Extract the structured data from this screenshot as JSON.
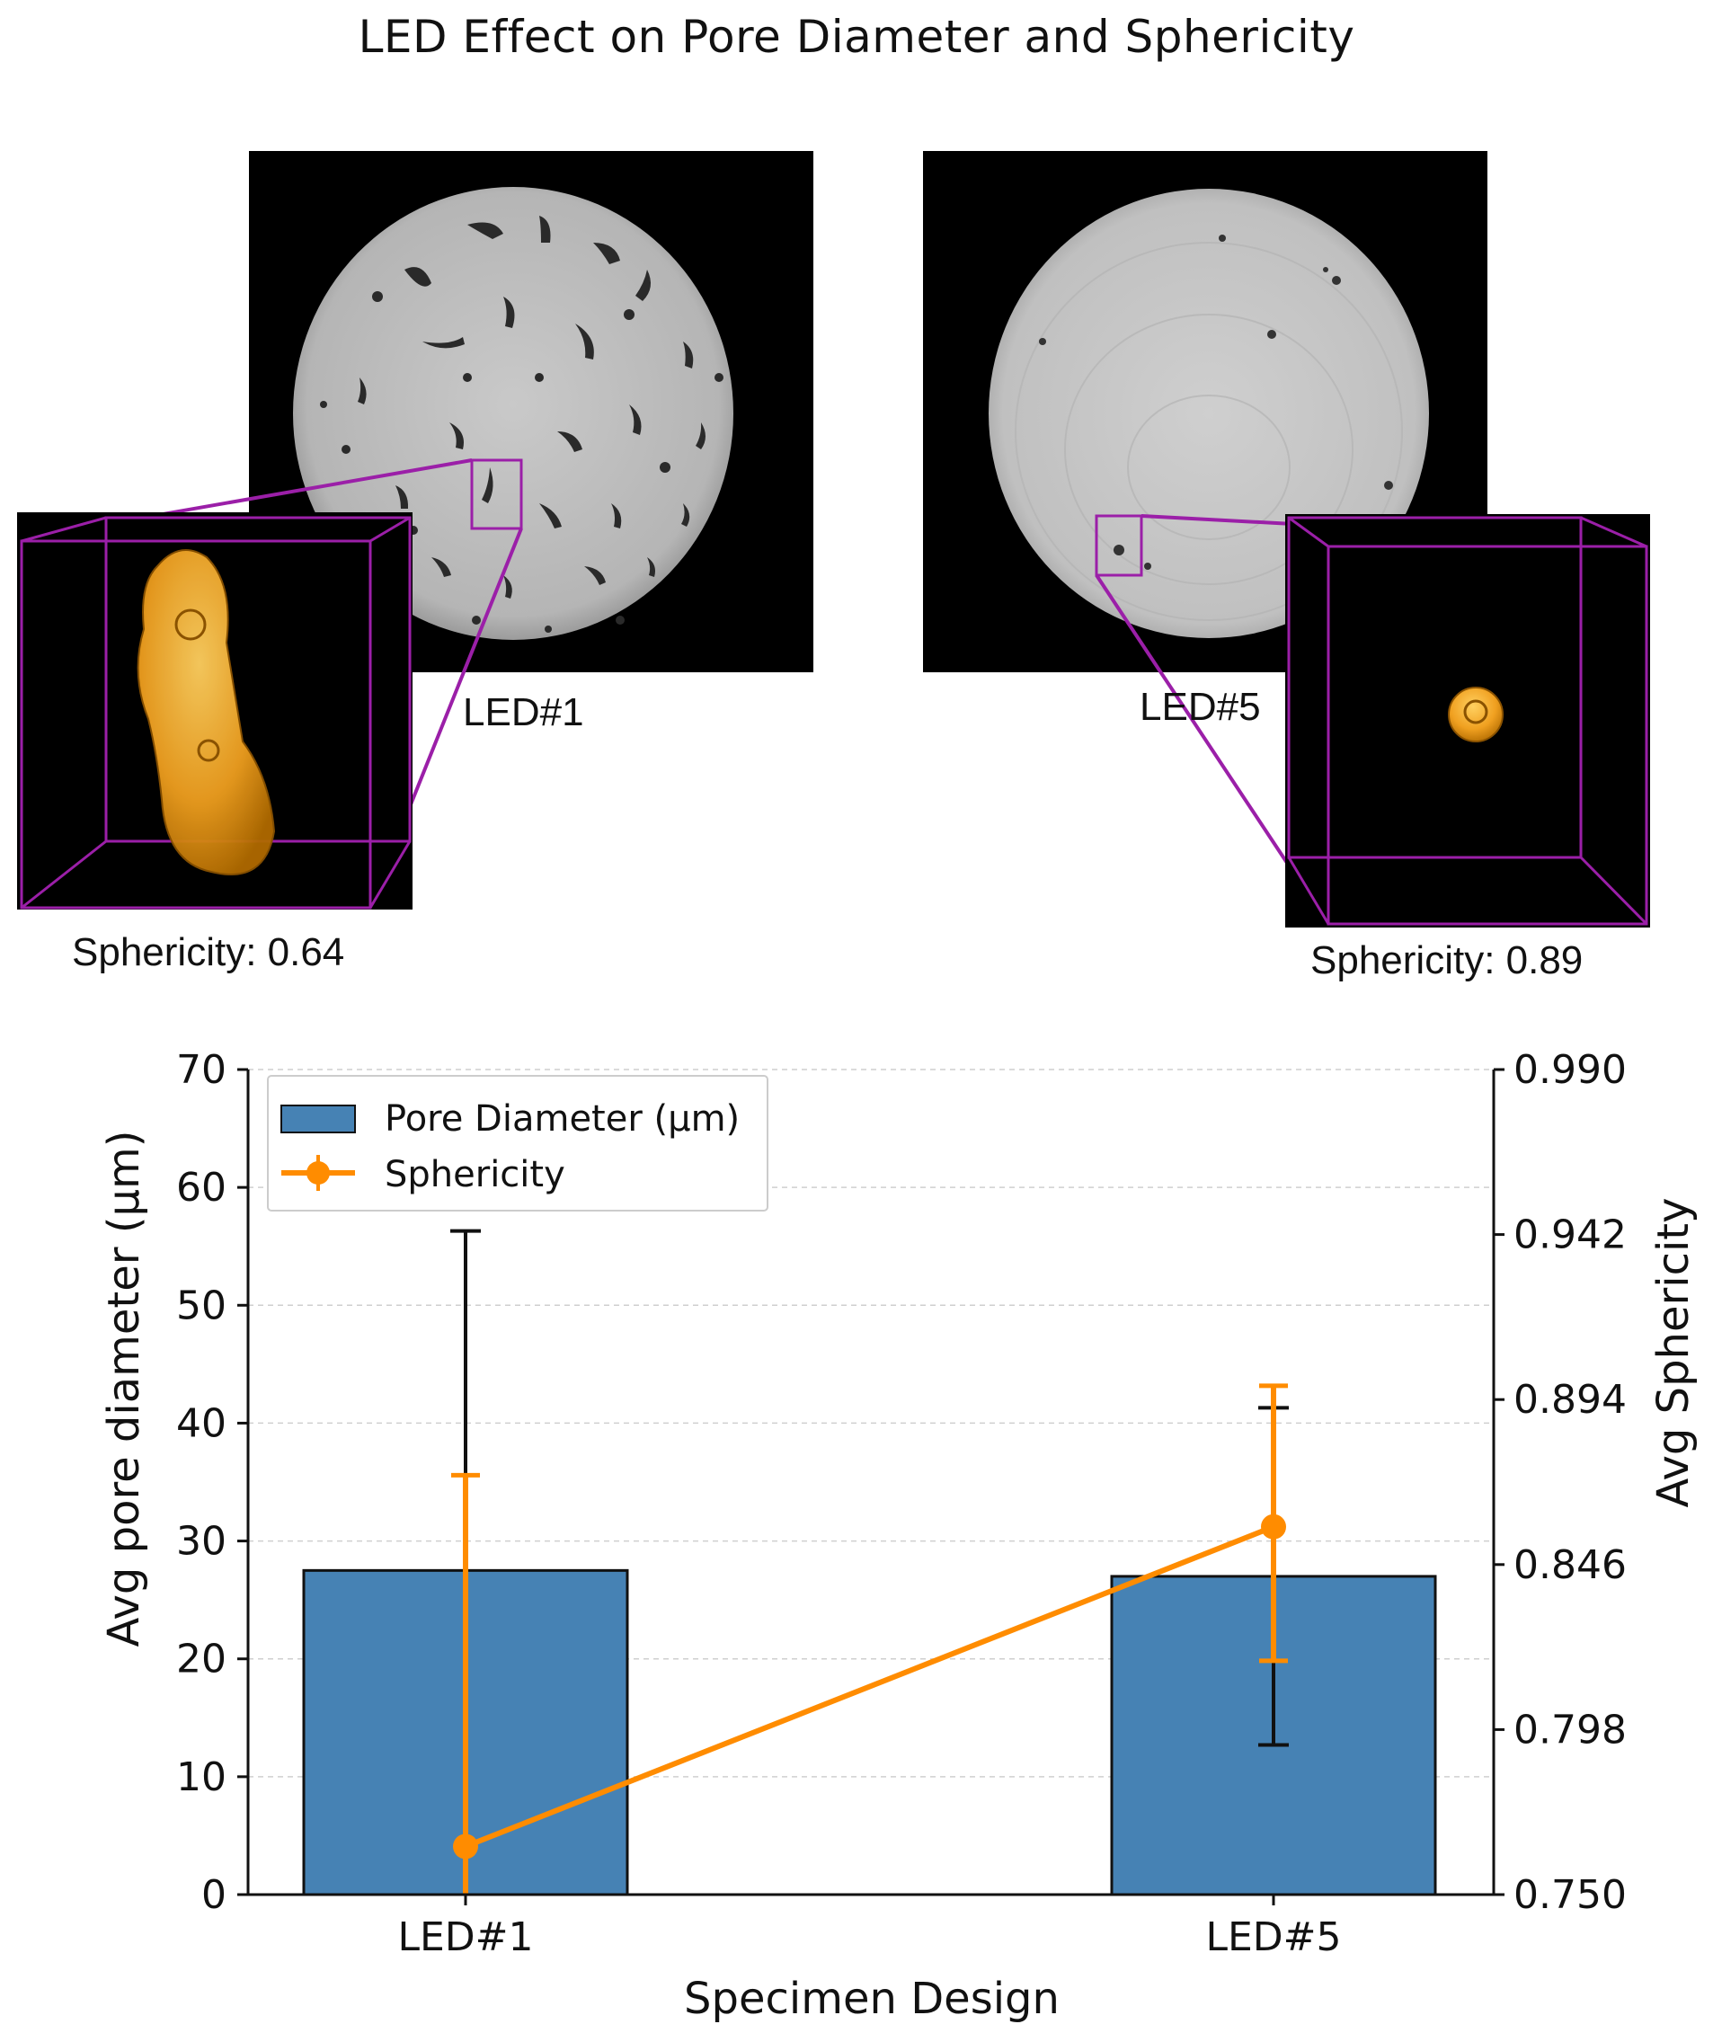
{
  "figure": {
    "title": "LED Effect on Pore Diameter and Sphericity",
    "panels": [
      {
        "label": "LED#1",
        "inset_caption": "Sphericity: 0.64"
      },
      {
        "label": "LED#5",
        "inset_caption": "Sphericity: 0.89"
      }
    ]
  },
  "colors": {
    "bar": "#4682b4",
    "line": "#ff8c00",
    "pore_render": "#f0a020",
    "inset_frame": "#9b1fa8",
    "ct_background": "#000000",
    "ct_specimen": "#bdbdbd"
  },
  "chart_data": {
    "type": "bar",
    "xlabel": "Specimen Design",
    "ylabel": "Avg pore diameter (µm)",
    "y2label": "Avg Sphericity",
    "categories": [
      "LED#1",
      "LED#5"
    ],
    "ylim": [
      0,
      70
    ],
    "yticks": [
      "0",
      "10",
      "20",
      "30",
      "40",
      "50",
      "60",
      "70"
    ],
    "y2lim": [
      0.75,
      0.99
    ],
    "y2ticks": [
      "0.750",
      "0.798",
      "0.846",
      "0.894",
      "0.942",
      "0.990"
    ],
    "grid": "horizontal-dashed",
    "legend_position": "top-left",
    "series": [
      {
        "name": "Pore Diameter (µm)",
        "type": "bar",
        "axis": "left",
        "values": [
          27.5,
          27.0
        ],
        "error_low": [
          0,
          12.7
        ],
        "error_high": [
          56.3,
          41.3
        ]
      },
      {
        "name": "Sphericity",
        "type": "line",
        "axis": "right",
        "values": [
          0.764,
          0.857
        ],
        "error_low": [
          0.75,
          0.818
        ],
        "error_high": [
          0.872,
          0.898
        ]
      }
    ]
  }
}
